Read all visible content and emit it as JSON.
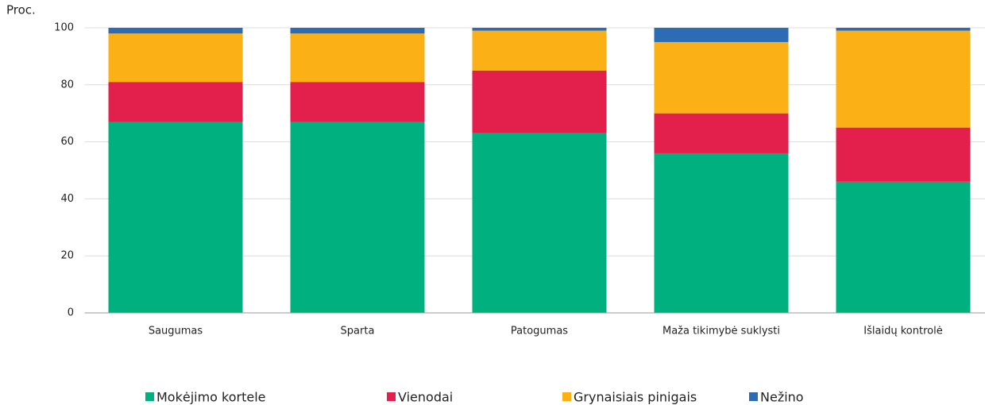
{
  "chart_data": {
    "type": "stacked_bar",
    "ylabel": "Proc.",
    "categories": [
      "Saugumas",
      "Sparta",
      "Patogumas",
      "Maža tikimybė suklysti",
      "Išlaidų kontrolė"
    ],
    "series": [
      {
        "name": "Mokėjimo kortele",
        "color": "#00b07f",
        "values": [
          67,
          67,
          63,
          56,
          46
        ]
      },
      {
        "name": "Vienodai",
        "color": "#e31f4b",
        "values": [
          14,
          14,
          22,
          14,
          19
        ]
      },
      {
        "name": "Grynaisiais pinigais",
        "color": "#fbb116",
        "values": [
          17,
          17,
          14,
          25,
          34
        ]
      },
      {
        "name": "Nežino",
        "color": "#2b6cb5",
        "values": [
          2,
          2,
          1,
          5,
          1
        ]
      }
    ],
    "ylim": [
      0,
      100
    ],
    "yticks": [
      0,
      20,
      40,
      60,
      80,
      100
    ],
    "grid": true,
    "legend": "bottom"
  }
}
